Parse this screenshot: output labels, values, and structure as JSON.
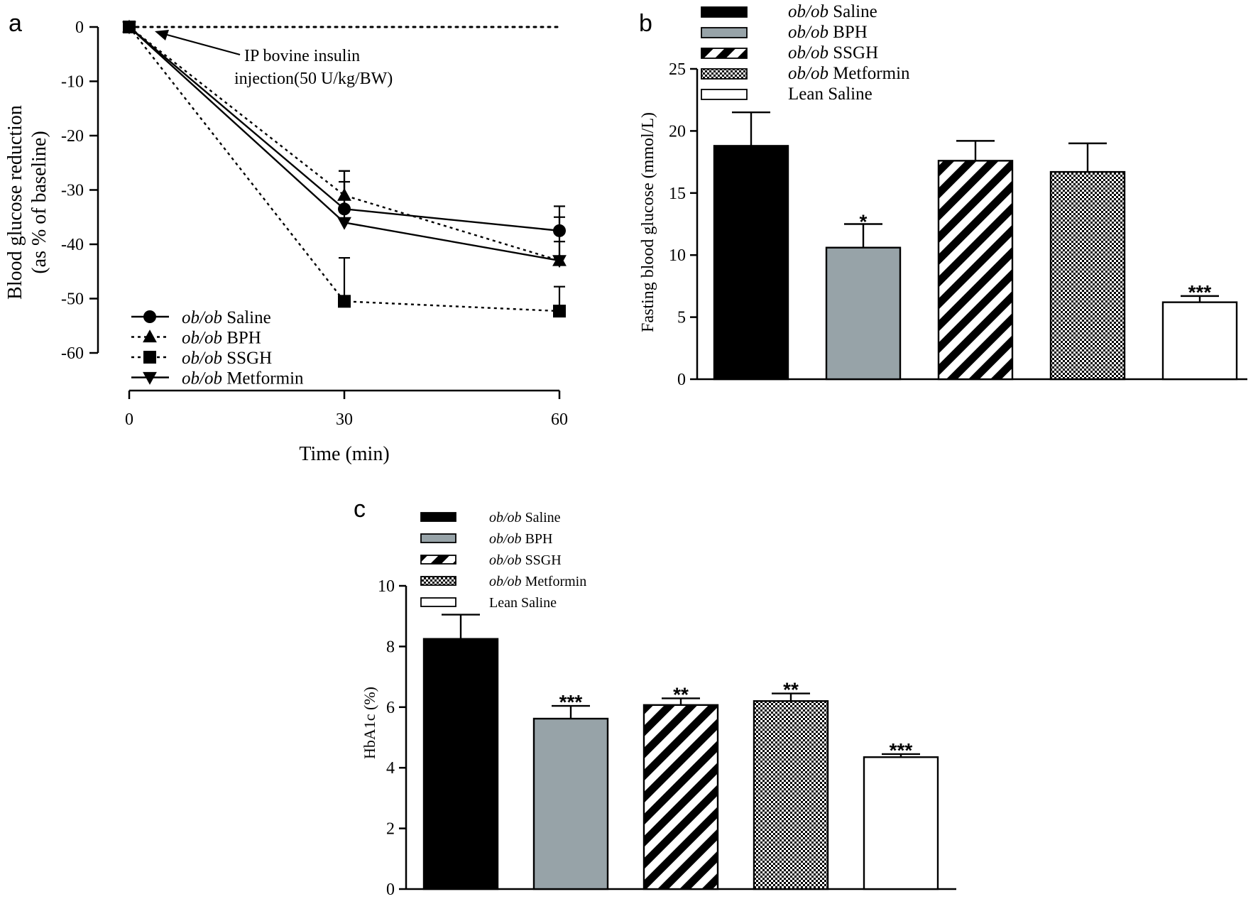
{
  "colors": {
    "ink": "#000000",
    "gray_bar": "#97a3a8",
    "white": "#ffffff"
  },
  "chart_data": [
    {
      "panel": "a",
      "type": "line",
      "title": "",
      "xlabel": "Time (min)",
      "ylabel_line1": "Blood glucose reduction",
      "ylabel_line2": "(as % of baseline)",
      "x": [
        0,
        30,
        60
      ],
      "xticks": [
        "0",
        "30",
        "60"
      ],
      "yticks": [
        "0",
        "-10",
        "-20",
        "-30",
        "-40",
        "-50",
        "-60"
      ],
      "ylim": [
        -60,
        0
      ],
      "annotation_line1": "IP bovine insulin",
      "annotation_line2": "injection(50 U/kg/BW)",
      "legend_position": "bottom-left",
      "series": [
        {
          "name_italic": "ob/ob",
          "name_rest": "Saline",
          "marker": "circle",
          "line": "solid",
          "values": [
            0,
            -33.5,
            -37.5
          ],
          "errors": [
            0,
            7.0,
            4.5
          ]
        },
        {
          "name_italic": "ob/ob",
          "name_rest": "BPH",
          "marker": "triangle-up",
          "line": "dotted",
          "values": [
            0,
            -31.0,
            -43.0
          ],
          "errors": [
            0,
            4.5,
            3.5
          ]
        },
        {
          "name_italic": "ob/ob",
          "name_rest": "SSGH",
          "marker": "square",
          "line": "dotted",
          "values": [
            0,
            -50.5,
            -52.3
          ],
          "errors": [
            0,
            8.0,
            4.5
          ]
        },
        {
          "name_italic": "ob/ob",
          "name_rest": "Metformin",
          "marker": "triangle-down",
          "line": "solid",
          "values": [
            0,
            -36.0,
            -43.0
          ],
          "errors": [
            0,
            7.5,
            8.0
          ]
        }
      ]
    },
    {
      "panel": "b",
      "type": "bar",
      "title": "",
      "ylabel": "Fasting blood glucose (mmol/L)",
      "yticks": [
        "0",
        "5",
        "10",
        "15",
        "20",
        "25"
      ],
      "ylim": [
        0,
        25
      ],
      "legend_position": "top-left",
      "bars": [
        {
          "name_italic": "ob/ob",
          "name_rest": "Saline",
          "pattern": "solid-black",
          "value": 18.8,
          "error": 2.7,
          "sig": ""
        },
        {
          "name_italic": "ob/ob",
          "name_rest": "BPH",
          "pattern": "solid-gray",
          "value": 10.6,
          "error": 1.9,
          "sig": "*"
        },
        {
          "name_italic": "ob/ob",
          "name_rest": "SSGH",
          "pattern": "diagonal-stripes",
          "value": 17.6,
          "error": 1.6,
          "sig": ""
        },
        {
          "name_italic": "ob/ob",
          "name_rest": "Metformin",
          "pattern": "checkered",
          "value": 16.7,
          "error": 2.3,
          "sig": ""
        },
        {
          "name_italic": "",
          "name_rest": "Lean Saline",
          "pattern": "white",
          "value": 6.2,
          "error": 0.5,
          "sig": "***"
        }
      ]
    },
    {
      "panel": "c",
      "type": "bar",
      "title": "",
      "ylabel": "HbA1c (%)",
      "yticks": [
        "0",
        "2",
        "4",
        "6",
        "8",
        "10"
      ],
      "ylim": [
        0,
        10
      ],
      "legend_position": "top-left",
      "bars": [
        {
          "name_italic": "ob/ob",
          "name_rest": "Saline",
          "pattern": "solid-black",
          "value": 8.25,
          "error": 0.8,
          "sig": ""
        },
        {
          "name_italic": "ob/ob",
          "name_rest": "BPH",
          "pattern": "solid-gray",
          "value": 5.62,
          "error": 0.42,
          "sig": "***"
        },
        {
          "name_italic": "ob/ob",
          "name_rest": "SSGH",
          "pattern": "diagonal-stripes",
          "value": 6.07,
          "error": 0.22,
          "sig": "**"
        },
        {
          "name_italic": "ob/ob",
          "name_rest": "Metformin",
          "pattern": "checkered",
          "value": 6.2,
          "error": 0.25,
          "sig": "**"
        },
        {
          "name_italic": "",
          "name_rest": "Lean Saline",
          "pattern": "white",
          "value": 4.35,
          "error": 0.1,
          "sig": "***"
        }
      ]
    }
  ]
}
